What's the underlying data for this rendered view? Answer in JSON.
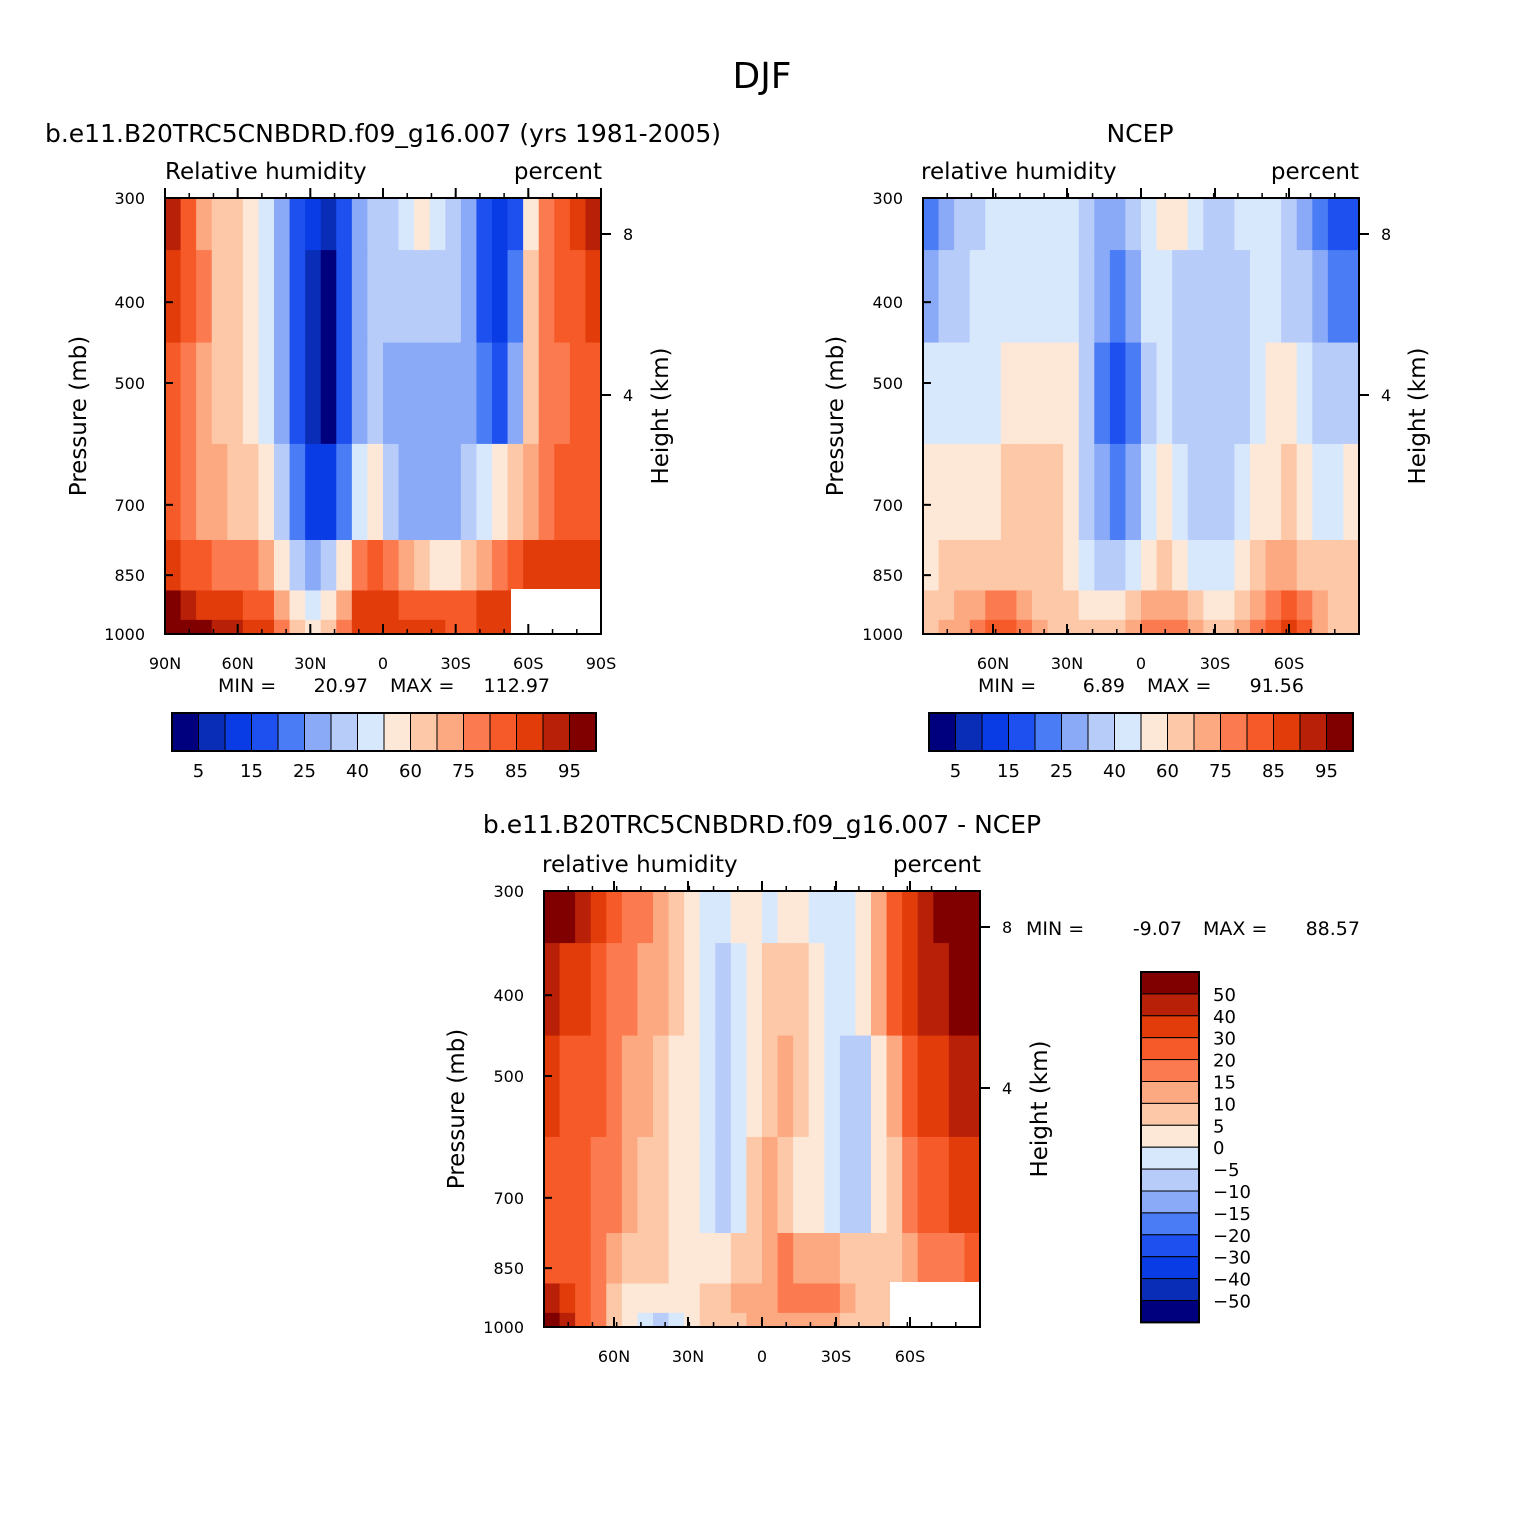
{
  "figure_title": "DJF",
  "scales": {
    "abs_colors": [
      "#00007f",
      "#0a2db8",
      "#0a3ce6",
      "#1e50f0",
      "#4a7cf6",
      "#8aaaf8",
      "#b8ccfa",
      "#d8e8fc",
      "#fde8d8",
      "#fcc8a8",
      "#fca880",
      "#fc7a50",
      "#f55a28",
      "#e23c0a",
      "#b82008",
      "#800000"
    ],
    "abs_labels": [
      "5",
      "15",
      "25",
      "40",
      "60",
      "75",
      "85",
      "95"
    ],
    "diff_colors": [
      "#00007f",
      "#0a2db8",
      "#0a3ce6",
      "#1e50f0",
      "#4a7cf6",
      "#8aaaf8",
      "#b8ccfa",
      "#d8e8fc",
      "#fde8d8",
      "#fcc8a8",
      "#fca880",
      "#fc7a50",
      "#f55a28",
      "#e23c0a",
      "#b82008",
      "#800000"
    ],
    "diff_labels": [
      "-50",
      "-40",
      "-30",
      "-20",
      "-15",
      "-10",
      "-5",
      "0",
      "5",
      "10",
      "15",
      "20",
      "30",
      "40",
      "50"
    ]
  },
  "chart_data": [
    {
      "type": "heatmap",
      "title": "b.e11.B20TRC5CNBDRD.f09_g16.007 (yrs 1981-2005)",
      "left_label": "Relative humidity",
      "right_label": "percent",
      "ylabel": "Pressure (mb)",
      "y2label": "Height (km)",
      "x_ticks": [
        "90N",
        "60N",
        "30N",
        "0",
        "30S",
        "60S",
        "90S"
      ],
      "y_ticks": [
        "300",
        "400",
        "500",
        "700",
        "850",
        "1000"
      ],
      "y2_ticks": [
        "8",
        "4"
      ],
      "stats": {
        "min_label": "MIN =",
        "min": "20.97",
        "max_label": "MAX =",
        "max": "112.97"
      },
      "grid_levels": [
        300,
        400,
        500,
        700,
        850,
        925,
        1000
      ],
      "rows": [
        [
          14,
          12,
          10,
          9,
          9,
          8,
          7,
          5,
          3,
          2,
          1,
          3,
          5,
          6,
          6,
          7,
          8,
          7,
          6,
          5,
          3,
          2,
          3,
          8,
          11,
          12,
          13,
          14
        ],
        [
          13,
          12,
          11,
          9,
          9,
          8,
          7,
          5,
          3,
          1,
          0,
          3,
          5,
          6,
          6,
          6,
          6,
          6,
          6,
          5,
          3,
          2,
          4,
          9,
          11,
          12,
          12,
          13
        ],
        [
          12,
          11,
          10,
          9,
          9,
          8,
          7,
          5,
          3,
          1,
          0,
          3,
          5,
          6,
          5,
          5,
          5,
          5,
          5,
          5,
          4,
          3,
          5,
          9,
          11,
          11,
          12,
          12
        ],
        [
          12,
          11,
          10,
          10,
          9,
          9,
          8,
          6,
          4,
          2,
          2,
          4,
          7,
          8,
          6,
          5,
          5,
          5,
          5,
          6,
          7,
          8,
          9,
          10,
          11,
          12,
          12,
          12
        ],
        [
          13,
          12,
          12,
          11,
          11,
          11,
          10,
          8,
          6,
          5,
          6,
          8,
          11,
          12,
          11,
          10,
          9,
          8,
          8,
          9,
          10,
          11,
          12,
          13,
          13,
          13,
          13,
          13
        ],
        [
          15,
          14,
          13,
          13,
          13,
          12,
          12,
          10,
          8,
          7,
          8,
          10,
          13,
          13,
          13,
          12,
          12,
          12,
          12,
          12,
          13,
          13,
          13,
          13,
          14,
          14,
          14,
          14
        ],
        [
          15,
          15,
          15,
          14,
          14,
          13,
          13,
          11,
          9,
          8,
          9,
          11,
          13,
          13,
          13,
          13,
          13,
          13,
          12,
          12,
          13,
          13,
          13,
          14,
          14,
          14,
          14,
          14
        ]
      ],
      "blank_region": "bottom-right"
    },
    {
      "type": "heatmap",
      "title": "NCEP",
      "left_label": "relative humidity",
      "right_label": "percent",
      "ylabel": "Pressure (mb)",
      "y2label": "Height (km)",
      "x_ticks": [
        "60N",
        "30N",
        "0",
        "30S",
        "60S"
      ],
      "y_ticks": [
        "300",
        "400",
        "500",
        "700",
        "850",
        "1000"
      ],
      "y2_ticks": [
        "8",
        "4"
      ],
      "stats": {
        "min_label": "MIN =",
        "min": "6.89",
        "max_label": "MAX =",
        "max": "91.56"
      },
      "grid_levels": [
        300,
        400,
        500,
        700,
        850,
        925,
        1000
      ],
      "rows": [
        [
          4,
          5,
          6,
          6,
          7,
          7,
          7,
          7,
          7,
          7,
          6,
          5,
          5,
          6,
          7,
          8,
          8,
          7,
          6,
          6,
          7,
          7,
          7,
          6,
          5,
          4,
          3,
          3
        ],
        [
          5,
          6,
          6,
          7,
          7,
          7,
          7,
          7,
          7,
          7,
          6,
          5,
          4,
          5,
          7,
          7,
          6,
          6,
          6,
          6,
          6,
          7,
          7,
          6,
          6,
          5,
          4,
          4
        ],
        [
          7,
          7,
          7,
          7,
          7,
          8,
          8,
          8,
          8,
          8,
          6,
          4,
          3,
          4,
          6,
          7,
          6,
          6,
          6,
          6,
          6,
          7,
          8,
          8,
          7,
          6,
          6,
          6
        ],
        [
          8,
          8,
          8,
          8,
          8,
          9,
          9,
          9,
          9,
          8,
          6,
          5,
          4,
          5,
          7,
          8,
          7,
          6,
          6,
          6,
          7,
          8,
          8,
          9,
          8,
          7,
          7,
          8
        ],
        [
          8,
          9,
          9,
          9,
          9,
          9,
          9,
          9,
          9,
          8,
          7,
          6,
          6,
          7,
          8,
          9,
          8,
          7,
          7,
          7,
          8,
          9,
          10,
          10,
          9,
          9,
          9,
          9
        ],
        [
          9,
          9,
          10,
          10,
          11,
          11,
          10,
          9,
          9,
          9,
          8,
          8,
          8,
          9,
          10,
          10,
          10,
          9,
          8,
          8,
          9,
          10,
          11,
          12,
          11,
          10,
          9,
          9
        ],
        [
          9,
          10,
          10,
          11,
          12,
          12,
          11,
          10,
          9,
          9,
          9,
          9,
          9,
          10,
          11,
          11,
          11,
          10,
          9,
          9,
          10,
          11,
          12,
          13,
          12,
          10,
          9,
          9
        ]
      ]
    },
    {
      "type": "heatmap",
      "title": "b.e11.B20TRC5CNBDRD.f09_g16.007 - NCEP",
      "left_label": "relative humidity",
      "right_label": "percent",
      "ylabel": "Pressure (mb)",
      "y2label": "Height (km)",
      "x_ticks": [
        "60N",
        "30N",
        "0",
        "30S",
        "60S"
      ],
      "y_ticks": [
        "300",
        "400",
        "500",
        "700",
        "850",
        "1000"
      ],
      "y2_ticks": [
        "8",
        "4"
      ],
      "stats": {
        "min_label": "MIN =",
        "min": "-9.07",
        "max_label": "MAX =",
        "max": "88.57"
      },
      "grid_levels": [
        300,
        400,
        500,
        700,
        850,
        925,
        1000
      ],
      "rows": [
        [
          15,
          15,
          14,
          13,
          12,
          11,
          11,
          10,
          9,
          8,
          7,
          7,
          8,
          8,
          7,
          8,
          8,
          7,
          7,
          7,
          8,
          10,
          12,
          13,
          14,
          15,
          15,
          15
        ],
        [
          14,
          13,
          13,
          12,
          11,
          11,
          10,
          10,
          9,
          8,
          7,
          6,
          7,
          8,
          9,
          9,
          9,
          8,
          7,
          7,
          8,
          10,
          12,
          13,
          14,
          14,
          15,
          15
        ],
        [
          13,
          12,
          12,
          12,
          11,
          10,
          10,
          9,
          8,
          8,
          7,
          6,
          7,
          8,
          9,
          10,
          9,
          8,
          7,
          6,
          6,
          8,
          10,
          12,
          13,
          13,
          14,
          14
        ],
        [
          12,
          12,
          12,
          11,
          11,
          10,
          9,
          9,
          8,
          8,
          7,
          6,
          7,
          9,
          10,
          9,
          8,
          8,
          7,
          6,
          6,
          8,
          9,
          11,
          12,
          12,
          13,
          13
        ],
        [
          12,
          12,
          12,
          11,
          10,
          9,
          9,
          9,
          8,
          8,
          8,
          8,
          9,
          9,
          10,
          11,
          10,
          10,
          10,
          9,
          9,
          9,
          9,
          10,
          11,
          11,
          11,
          12
        ],
        [
          14,
          13,
          12,
          11,
          9,
          8,
          8,
          8,
          8,
          8,
          9,
          9,
          10,
          10,
          10,
          11,
          11,
          11,
          11,
          10,
          9,
          9,
          9,
          9,
          9,
          10,
          10,
          10
        ],
        [
          15,
          14,
          12,
          11,
          9,
          8,
          7,
          6,
          7,
          8,
          9,
          9,
          9,
          10,
          10,
          10,
          10,
          10,
          10,
          9,
          9,
          9,
          9,
          9,
          9,
          9,
          9,
          9
        ]
      ],
      "blank_region": "bottom-right"
    }
  ]
}
